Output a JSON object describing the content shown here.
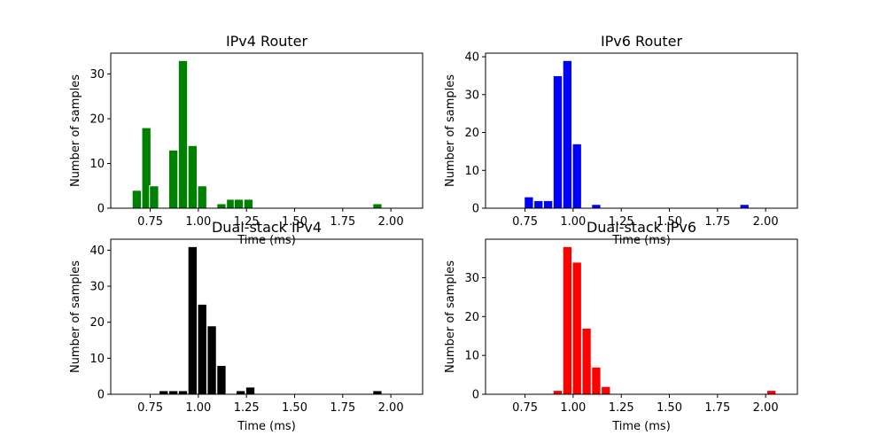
{
  "chart_data": [
    {
      "type": "bar",
      "title": "IPv4 Router",
      "xlabel": "Time (ms)",
      "ylabel": "Number of samples",
      "color": "#008000",
      "xlim": [
        0.545,
        2.165
      ],
      "ylim": [
        0,
        34.65
      ],
      "xticks": [
        0.75,
        1.0,
        1.25,
        1.5,
        1.75,
        2.0
      ],
      "xtick_labels": [
        "0.75",
        "1.00",
        "1.25",
        "1.50",
        "1.75",
        "2.00"
      ],
      "yticks": [
        0,
        10,
        20,
        30
      ],
      "ytick_labels": [
        "0",
        "10",
        "20",
        "30"
      ],
      "bin_width": 0.0475,
      "bars": [
        {
          "x": 0.68,
          "value": 4
        },
        {
          "x": 0.73,
          "value": 18
        },
        {
          "x": 0.77,
          "value": 5
        },
        {
          "x": 0.87,
          "value": 13
        },
        {
          "x": 0.92,
          "value": 33
        },
        {
          "x": 0.97,
          "value": 14
        },
        {
          "x": 1.02,
          "value": 5
        },
        {
          "x": 1.12,
          "value": 1
        },
        {
          "x": 1.17,
          "value": 2
        },
        {
          "x": 1.21,
          "value": 2
        },
        {
          "x": 1.26,
          "value": 2
        },
        {
          "x": 1.93,
          "value": 1
        }
      ]
    },
    {
      "type": "bar",
      "title": "IPv6 Router",
      "xlabel": "Time (ms)",
      "ylabel": "Number of samples",
      "color": "#0000ff",
      "xlim": [
        0.545,
        2.165
      ],
      "ylim": [
        0,
        40.95
      ],
      "xticks": [
        0.75,
        1.0,
        1.25,
        1.5,
        1.75,
        2.0
      ],
      "xtick_labels": [
        "0.75",
        "1.00",
        "1.25",
        "1.50",
        "1.75",
        "2.00"
      ],
      "yticks": [
        0,
        10,
        20,
        30,
        40
      ],
      "ytick_labels": [
        "0",
        "10",
        "20",
        "30",
        "40"
      ],
      "bin_width": 0.0475,
      "bars": [
        {
          "x": 0.77,
          "value": 3
        },
        {
          "x": 0.82,
          "value": 2
        },
        {
          "x": 0.87,
          "value": 2
        },
        {
          "x": 0.92,
          "value": 35
        },
        {
          "x": 0.97,
          "value": 39
        },
        {
          "x": 1.02,
          "value": 17
        },
        {
          "x": 1.12,
          "value": 1
        },
        {
          "x": 1.89,
          "value": 1
        }
      ]
    },
    {
      "type": "bar",
      "title": "Dual-stack IPv4",
      "xlabel": "Time (ms)",
      "ylabel": "Number of samples",
      "color": "#000000",
      "xlim": [
        0.545,
        2.165
      ],
      "ylim": [
        0,
        43.05
      ],
      "xticks": [
        0.75,
        1.0,
        1.25,
        1.5,
        1.75,
        2.0
      ],
      "xtick_labels": [
        "0.75",
        "1.00",
        "1.25",
        "1.50",
        "1.75",
        "2.00"
      ],
      "yticks": [
        0,
        10,
        20,
        30,
        40
      ],
      "ytick_labels": [
        "0",
        "10",
        "20",
        "30",
        "40"
      ],
      "bin_width": 0.0475,
      "bars": [
        {
          "x": 0.82,
          "value": 1
        },
        {
          "x": 0.87,
          "value": 1
        },
        {
          "x": 0.92,
          "value": 1
        },
        {
          "x": 0.97,
          "value": 41
        },
        {
          "x": 1.02,
          "value": 25
        },
        {
          "x": 1.07,
          "value": 19
        },
        {
          "x": 1.12,
          "value": 8
        },
        {
          "x": 1.22,
          "value": 1
        },
        {
          "x": 1.27,
          "value": 2
        },
        {
          "x": 1.93,
          "value": 1
        }
      ]
    },
    {
      "type": "bar",
      "title": "Dual-stack IPv6",
      "xlabel": "Time (ms)",
      "ylabel": "Number of samples",
      "color": "#ff0000",
      "xlim": [
        0.545,
        2.165
      ],
      "ylim": [
        0,
        39.9
      ],
      "xticks": [
        0.75,
        1.0,
        1.25,
        1.5,
        1.75,
        2.0
      ],
      "xtick_labels": [
        "0.75",
        "1.00",
        "1.25",
        "1.50",
        "1.75",
        "2.00"
      ],
      "yticks": [
        0,
        10,
        20,
        30
      ],
      "ytick_labels": [
        "0",
        "10",
        "20",
        "30"
      ],
      "bin_width": 0.0475,
      "bars": [
        {
          "x": 0.92,
          "value": 1
        },
        {
          "x": 0.97,
          "value": 38
        },
        {
          "x": 1.02,
          "value": 34
        },
        {
          "x": 1.07,
          "value": 17
        },
        {
          "x": 1.12,
          "value": 7
        },
        {
          "x": 1.17,
          "value": 2
        },
        {
          "x": 2.03,
          "value": 1
        }
      ]
    }
  ]
}
